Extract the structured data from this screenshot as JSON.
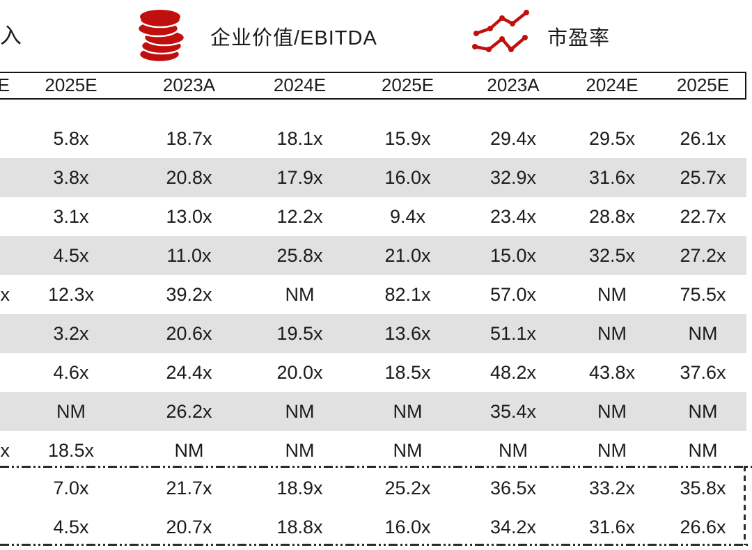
{
  "colors": {
    "accent_red": "#c0100e",
    "row_alt_gray": "#e1e1e1",
    "border_dark": "#151515",
    "text": "#1b1b1b"
  },
  "legend": {
    "revenue_partial_label": "入",
    "ev_ebitda_label": "企业价值/EBITDA",
    "pe_label": "市盈率"
  },
  "icons": {
    "coins": "coin-stack-icon",
    "pe": "line-chart-icon"
  },
  "table": {
    "header": [
      "E",
      "2025E",
      "2023A",
      "2024E",
      "2025E",
      "2023A",
      "2024E",
      "2025E"
    ],
    "rows": [
      [
        "",
        "5.8x",
        "18.7x",
        "18.1x",
        "15.9x",
        "29.4x",
        "29.5x",
        "26.1x"
      ],
      [
        "",
        "3.8x",
        "20.8x",
        "17.9x",
        "16.0x",
        "32.9x",
        "31.6x",
        "25.7x"
      ],
      [
        "",
        "3.1x",
        "13.0x",
        "12.2x",
        "9.4x",
        "23.4x",
        "28.8x",
        "22.7x"
      ],
      [
        "",
        "4.5x",
        "11.0x",
        "25.8x",
        "21.0x",
        "15.0x",
        "32.5x",
        "27.2x"
      ],
      [
        "x",
        "12.3x",
        "39.2x",
        "NM",
        "82.1x",
        "57.0x",
        "NM",
        "75.5x"
      ],
      [
        "",
        "3.2x",
        "20.6x",
        "19.5x",
        "13.6x",
        "51.1x",
        "NM",
        "NM"
      ],
      [
        "",
        "4.6x",
        "24.4x",
        "20.0x",
        "18.5x",
        "48.2x",
        "43.8x",
        "37.6x"
      ],
      [
        "",
        "NM",
        "26.2x",
        "NM",
        "NM",
        "35.4x",
        "NM",
        "NM"
      ],
      [
        "x",
        "18.5x",
        "NM",
        "NM",
        "NM",
        "NM",
        "NM",
        "NM"
      ]
    ],
    "summary_rows": [
      [
        "",
        "7.0x",
        "21.7x",
        "18.9x",
        "25.2x",
        "36.5x",
        "33.2x",
        "35.8x"
      ],
      [
        "",
        "4.5x",
        "20.7x",
        "18.8x",
        "16.0x",
        "34.2x",
        "31.6x",
        "26.6x"
      ]
    ]
  }
}
